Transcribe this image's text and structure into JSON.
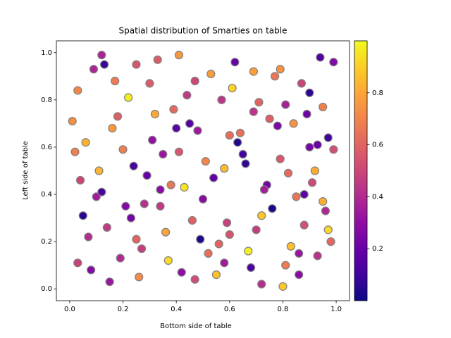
{
  "chart_data": {
    "type": "scatter",
    "title": "Spatial distribution of Smarties on table",
    "x_label": "Bottom side of table",
    "y_label": "Left side of table",
    "colormap": "plasma",
    "edgecolor": "#808080",
    "clim": [
      0,
      1
    ],
    "cticks": [
      0.2,
      0.4,
      0.6,
      0.8
    ],
    "xlim": [
      -0.05,
      1.05
    ],
    "ylim": [
      -0.05,
      1.05
    ],
    "xticks": [
      {
        "value": 0,
        "label": "0.0"
      },
      0.2,
      0.4,
      0.6,
      0.8,
      {
        "value": 1,
        "label": "1.0"
      }
    ],
    "yticks": [
      {
        "value": 0,
        "label": "0.0"
      },
      0.2,
      0.4,
      0.6,
      0.8,
      {
        "value": 1,
        "label": "1.0"
      }
    ],
    "x": [
      0.03,
      0.12,
      0.25,
      0.37,
      0.48,
      0.59,
      0.66,
      0.77,
      0.86,
      0.95,
      0.07,
      0.18,
      0.29,
      0.41,
      0.52,
      0.63,
      0.72,
      0.81,
      0.91,
      0.99,
      0.02,
      0.15,
      0.22,
      0.34,
      0.45,
      0.56,
      0.69,
      0.74,
      0.88,
      0.97,
      0.09,
      0.11,
      0.27,
      0.39,
      0.5,
      0.61,
      0.68,
      0.79,
      0.84,
      0.93,
      0.05,
      0.17,
      0.31,
      0.36,
      0.47,
      0.54,
      0.71,
      0.83,
      0.9,
      0.96,
      0.01,
      0.14,
      0.24,
      0.33,
      0.43,
      0.58,
      0.64,
      0.76,
      0.87,
      0.92,
      0.08,
      0.2,
      0.28,
      0.4,
      0.53,
      0.6,
      0.73,
      0.8,
      0.89,
      0.98,
      0.04,
      0.13,
      0.26,
      0.35,
      0.46,
      0.57,
      0.67,
      0.78,
      0.85,
      0.94,
      0.06,
      0.19,
      0.3,
      0.42,
      0.51,
      0.62,
      0.7,
      0.82,
      0.9,
      0.99,
      0.1,
      0.16,
      0.23,
      0.38,
      0.44,
      0.55,
      0.65,
      0.75,
      0.86,
      0.95,
      0.03,
      0.21,
      0.32,
      0.41,
      0.49,
      0.6,
      0.72,
      0.79,
      0.88,
      0.97,
      0.12,
      0.25,
      0.34,
      0.47,
      0.58,
      0.69,
      0.81,
      0.93
    ],
    "values": [
      0.84,
      0.41,
      0.95,
      0.12,
      0.67,
      0.28,
      0.53,
      0.9,
      0.06,
      0.37,
      0.22,
      0.73,
      0.48,
      0.99,
      0.15,
      0.62,
      0.31,
      0.78,
      0.45,
      0.96,
      0.58,
      0.03,
      0.81,
      0.35,
      0.7,
      0.19,
      0.92,
      0.44,
      0.27,
      0.64,
      0.93,
      0.5,
      0.17,
      0.76,
      0.38,
      0.85,
      0.09,
      0.55,
      0.7,
      0.14,
      0.31,
      0.88,
      0.63,
      0.24,
      0.04,
      0.47,
      0.79,
      0.18,
      0.6,
      0.33,
      0.71,
      0.26,
      0.52,
      0.97,
      0.43,
      0.11,
      0.66,
      0.34,
      0.87,
      0.5,
      0.08,
      0.59,
      0.36,
      0.68,
      0.91,
      0.23,
      0.42,
      0.01,
      0.74,
      0.2,
      0.46,
      0.95,
      0.05,
      0.57,
      0.29,
      0.8,
      0.16,
      0.69,
      0.39,
      0.98,
      0.62,
      0.13,
      0.87,
      0.07,
      0.54,
      0.96,
      0.25,
      0.49,
      0.83,
      0.59,
      0.39,
      0.68,
      0.3,
      0.44,
      0.82,
      0.06,
      0.57,
      0.72,
      0.15,
      0.77,
      0.11,
      0.35,
      0.74,
      0.58,
      0.21,
      0.65,
      0.02,
      0.93,
      0.4,
      0.25,
      0.99,
      0.21,
      0.42,
      0.88,
      0.51,
      0.75,
      0.1,
      0.61
    ],
    "c": [
      0.71,
      0.12,
      0.55,
      0.93,
      0.34,
      0.48,
      0.07,
      0.66,
      0.29,
      0.82,
      0.41,
      0.58,
      0.19,
      0.75,
      0.63,
      0.04,
      0.88,
      0.37,
      0.51,
      0.26,
      0.69,
      0.33,
      0.97,
      0.45,
      0.15,
      0.6,
      0.78,
      0.22,
      0.53,
      0.09,
      0.38,
      0.84,
      0.47,
      0.62,
      0.28,
      0.91,
      0.13,
      0.56,
      0.74,
      0.43,
      0.05,
      0.67,
      0.31,
      0.79,
      0.52,
      0.18,
      0.6,
      0.86,
      0.24,
      0.39,
      0.73,
      0.46,
      0.11,
      0.57,
      0.95,
      0.35,
      0.64,
      0.02,
      0.49,
      0.81,
      0.27,
      0.68,
      0.42,
      0.16,
      0.77,
      0.54,
      0.36,
      0.89,
      0.21,
      0.61,
      0.5,
      0.08,
      0.72,
      0.33,
      0.59,
      0.44,
      0.98,
      0.25,
      0.65,
      0.14,
      0.83,
      0.4,
      0.57,
      0.3,
      0.7,
      0.19,
      0.47,
      0.62,
      0.06,
      0.53,
      0.35,
      0.76,
      0.23,
      0.66,
      0.45,
      0.87,
      0.1,
      0.58,
      0.32,
      0.69,
      0.48,
      0.27,
      0.8,
      0.55,
      0.03,
      0.63,
      0.41,
      0.74,
      0.17,
      0.92,
      0.38,
      0.6,
      0.29,
      0.5,
      0.85,
      0.44,
      0.67,
      0.2
    ]
  }
}
